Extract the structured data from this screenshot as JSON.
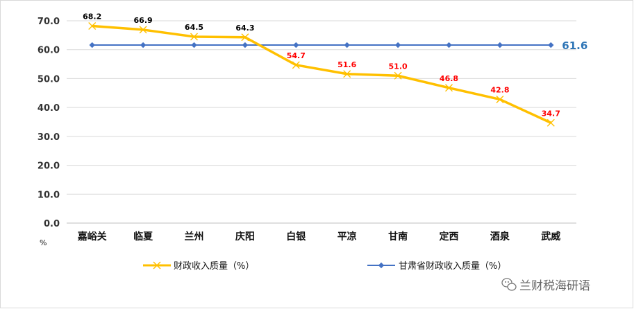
{
  "chart_data": {
    "type": "line",
    "categories": [
      "嘉峪关",
      "临夏",
      "兰州",
      "庆阳",
      "白银",
      "平凉",
      "甘南",
      "定西",
      "酒泉",
      "武威"
    ],
    "series": [
      {
        "name": "财政收入质量（%）",
        "values": [
          68.2,
          66.9,
          64.5,
          64.3,
          54.7,
          51.6,
          51.0,
          46.8,
          42.8,
          34.7
        ],
        "labels": [
          "68.2",
          "66.9",
          "64.5",
          "64.3",
          "54.7",
          "51.6",
          "51.0",
          "46.8",
          "42.8",
          "34.7"
        ],
        "color": "#FFC000",
        "marker": "x"
      },
      {
        "name": "甘肃省财政收入质量（%）",
        "values": [
          61.6,
          61.6,
          61.6,
          61.6,
          61.6,
          61.6,
          61.6,
          61.6,
          61.6,
          61.6
        ],
        "end_label": "61.6",
        "color": "#4472C4",
        "marker": "diamond"
      }
    ],
    "label_colors": {
      "above_province": "#000000",
      "below_province": "#FF0000",
      "reference": "#2E75B6"
    },
    "ylim": [
      0,
      70
    ],
    "yticks": [
      "0.0",
      "10.0",
      "20.0",
      "30.0",
      "40.0",
      "50.0",
      "60.0",
      "70.0"
    ],
    "yunit": "%",
    "grid": true,
    "legend_position": "bottom"
  },
  "watermark": "兰财税海研语"
}
